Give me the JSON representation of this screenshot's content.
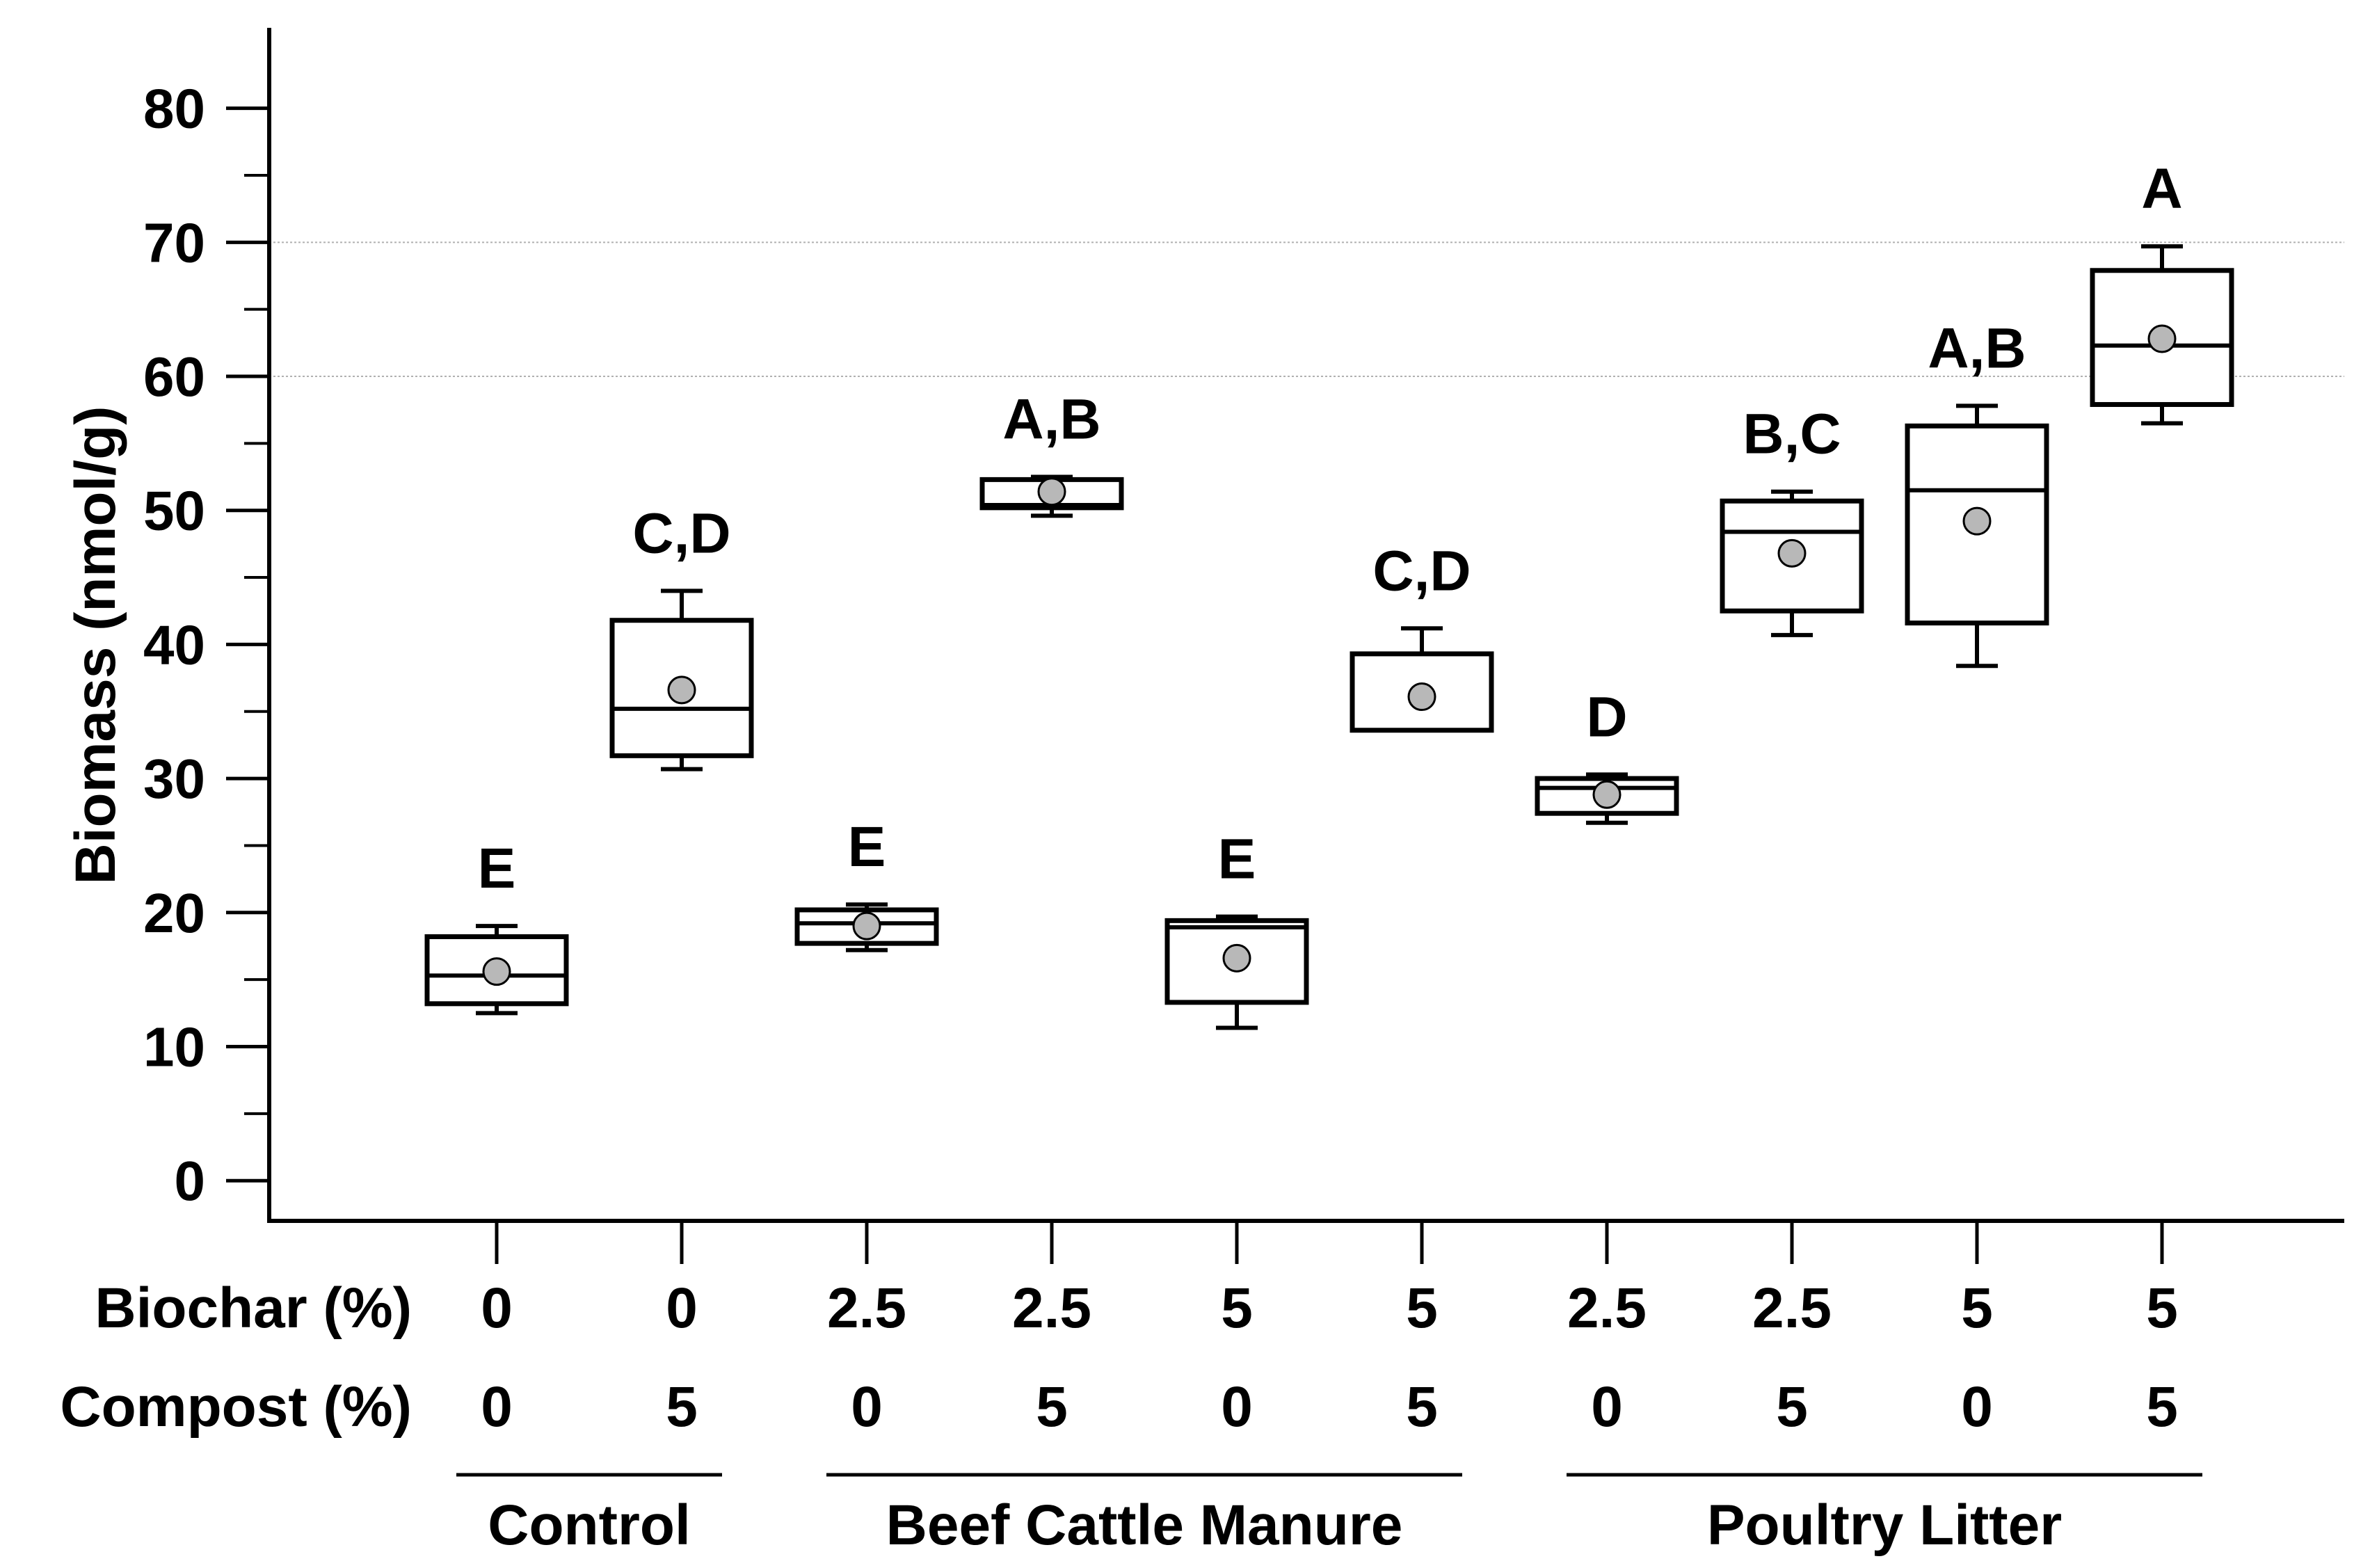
{
  "chart_data": {
    "type": "box",
    "ylabel": "Biomass (nmol/g)",
    "ylim": [
      -3,
      86
    ],
    "yticks": [
      0,
      10,
      20,
      30,
      40,
      50,
      60,
      70,
      80
    ],
    "grid_y_dotted": [
      60,
      70
    ],
    "row_labels": {
      "biochar": "Biochar (%)",
      "compost": "Compost (%)"
    },
    "groups": [
      {
        "label": "Control",
        "span": [
          0,
          1
        ]
      },
      {
        "label": "Beef Cattle Manure",
        "span": [
          2,
          5
        ]
      },
      {
        "label": "Poultry Litter",
        "span": [
          6,
          9
        ]
      }
    ],
    "treatments": [
      {
        "biochar": "0",
        "compost": "0",
        "letter": "E",
        "whisker_low": 12.5,
        "q1": 13.2,
        "median": 15.3,
        "q3": 18.2,
        "whisker_high": 19.0,
        "mean": 15.6
      },
      {
        "biochar": "0",
        "compost": "5",
        "letter": "C,D",
        "whisker_low": 30.7,
        "q1": 31.7,
        "median": 35.2,
        "q3": 41.8,
        "whisker_high": 44.0,
        "mean": 36.6
      },
      {
        "biochar": "2.5",
        "compost": "0",
        "letter": "E",
        "whisker_low": 17.2,
        "q1": 17.7,
        "median": 19.2,
        "q3": 20.2,
        "whisker_high": 20.6,
        "mean": 19.0
      },
      {
        "biochar": "2.5",
        "compost": "5",
        "letter": "A,B",
        "whisker_low": 49.6,
        "q1": 50.2,
        "median": 50.4,
        "q3": 52.3,
        "whisker_high": 52.5,
        "mean": 51.4
      },
      {
        "biochar": "5",
        "compost": "0",
        "letter": "E",
        "whisker_low": 11.4,
        "q1": 13.3,
        "median": 18.9,
        "q3": 19.4,
        "whisker_high": 19.7,
        "mean": 16.6
      },
      {
        "biochar": "5",
        "compost": "5",
        "letter": "C,D",
        "whisker_low": 33.6,
        "q1": 33.6,
        "median": 33.6,
        "q3": 39.3,
        "whisker_high": 41.2,
        "mean": 36.1
      },
      {
        "biochar": "2.5",
        "compost": "0",
        "letter": "D",
        "whisker_low": 26.7,
        "q1": 27.4,
        "median": 29.3,
        "q3": 30.0,
        "whisker_high": 30.3,
        "mean": 28.8
      },
      {
        "biochar": "2.5",
        "compost": "5",
        "letter": "B,C",
        "whisker_low": 40.7,
        "q1": 42.5,
        "median": 48.4,
        "q3": 50.7,
        "whisker_high": 51.4,
        "mean": 46.8
      },
      {
        "biochar": "5",
        "compost": "0",
        "letter": "A,B",
        "whisker_low": 38.4,
        "q1": 41.6,
        "median": 51.5,
        "q3": 56.3,
        "whisker_high": 57.8,
        "mean": 49.2
      },
      {
        "biochar": "5",
        "compost": "5",
        "letter": "A",
        "whisker_low": 56.5,
        "q1": 57.9,
        "median": 62.3,
        "q3": 67.9,
        "whisker_high": 69.7,
        "mean": 62.8
      }
    ]
  }
}
